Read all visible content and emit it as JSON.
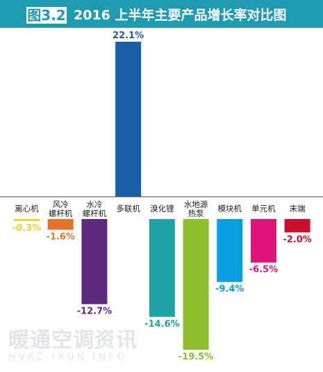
{
  "header": {
    "figure_label": "图3.2",
    "title": "2016 上半年主要产品增长率对比图",
    "color": "#1f9bb1"
  },
  "watermark": {
    "line1": "暖通空调资讯",
    "line2": "HVAC.IXUN.INFO"
  },
  "chart_data": {
    "type": "bar",
    "title": "2016 上半年主要产品增长率对比图",
    "categories": [
      "离心机",
      "风冷\n螺杆机",
      "水冷\n螺杆机",
      "多联机",
      "溴化锂",
      "水地源\n热泵",
      "模块机",
      "单元机",
      "末端"
    ],
    "values": [
      -0.3,
      -1.6,
      -12.7,
      22.1,
      -14.6,
      -19.5,
      -9.4,
      -6.5,
      -2.0
    ],
    "value_labels": [
      "-0.3%",
      "-1.6%",
      "-12.7%",
      "22.1%",
      "-14.6%",
      "-19.5%",
      "-9.4%",
      "-6.5%",
      "-2.0%"
    ],
    "colors": [
      "#f2d12c",
      "#e8722a",
      "#5e2a7e",
      "#1b5ea8",
      "#1fa3a6",
      "#8dbf2a",
      "#0a9fe0",
      "#e0137d",
      "#c8102e"
    ],
    "ylim": [
      -19.5,
      22.1
    ],
    "grid": false,
    "legend": "none"
  }
}
